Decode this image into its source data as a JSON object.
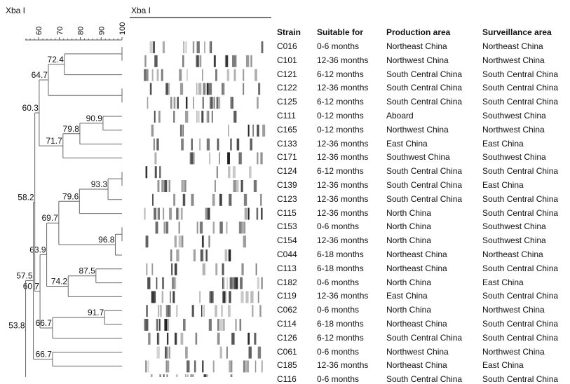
{
  "dendrogram_title": "Xba I",
  "gel_title": "Xba I",
  "axis": {
    "ticks": [
      60,
      70,
      80,
      90,
      100
    ],
    "range": [
      53.8,
      100
    ]
  },
  "columns": [
    "Strain",
    "Suitable for",
    "Production area",
    "Surveillance area"
  ],
  "rows": [
    [
      "C016",
      "0-6 months",
      "Northeast China",
      "Northeast China"
    ],
    [
      "C101",
      "12-36 months",
      "Northwest China",
      "Northwest China"
    ],
    [
      "C121",
      "6-12 months",
      "South Central China",
      "South Central China"
    ],
    [
      "C122",
      "12-36 months",
      "South Central China",
      "South Central China"
    ],
    [
      "C125",
      "6-12 months",
      "South Central China",
      "South Central China"
    ],
    [
      "C111",
      "0-12 months",
      "Aboard",
      "Southwest China"
    ],
    [
      "C165",
      "0-12 months",
      "Northwest China",
      "Northwest China"
    ],
    [
      "C133",
      "12-36 months",
      "East China",
      "East China"
    ],
    [
      "C171",
      "12-36 months",
      "Southwest China",
      "Southwest China"
    ],
    [
      "C124",
      "6-12 months",
      "South Central China",
      "South Central China"
    ],
    [
      "C139",
      "12-36 months",
      "South Central China",
      "East China"
    ],
    [
      "C123",
      "12-36 months",
      "South Central China",
      "South Central China"
    ],
    [
      "C115",
      "12-36 months",
      "North China",
      "South Central China"
    ],
    [
      "C153",
      "0-6 months",
      "North China",
      "Southwest China"
    ],
    [
      "C154",
      "12-36 months",
      "North China",
      "Southwest China"
    ],
    [
      "C044",
      "6-18 months",
      "Northeast China",
      "Northeast China"
    ],
    [
      "C113",
      "6-18 months",
      "Northeast China",
      "South Central China"
    ],
    [
      "C182",
      "0-6 months",
      "North China",
      "East China"
    ],
    [
      "C119",
      "12-36 months",
      "East China",
      "South Central China"
    ],
    [
      "C062",
      "0-6 months",
      "North China",
      "Northwest China"
    ],
    [
      "C114",
      "6-18 months",
      "Northeast China",
      "South Central China"
    ],
    [
      "C126",
      "6-12 months",
      "South Central China",
      "South Central China"
    ],
    [
      "C061",
      "0-6 months",
      "Northwest China",
      "Northwest China"
    ],
    [
      "C185",
      "12-36 months",
      "Northeast China",
      "East China"
    ],
    [
      "C116",
      "0-6 months",
      "South Central China",
      "South Central China"
    ]
  ],
  "tree": {
    "sim": 53.8,
    "label": "53.8",
    "children": [
      {
        "sim": 57.5,
        "label": "57.5",
        "children": [
          {
            "sim": 58.2,
            "label": "58.2",
            "children": [
              {
                "sim": 60.3,
                "label": "60.3",
                "children": [
                  {
                    "sim": 64.7,
                    "label": "64.7",
                    "children": [
                      {
                        "sim": 72.4,
                        "label": "72.4",
                        "children": [
                          {
                            "sim": 100,
                            "children": [
                              "C016",
                              "C101"
                            ]
                          },
                          "C121"
                        ]
                      },
                      {
                        "sim": 100,
                        "children": [
                          "C122",
                          "C125"
                        ]
                      }
                    ]
                  },
                  {
                    "sim": 71.7,
                    "label": "71.7",
                    "children": [
                      {
                        "sim": 79.8,
                        "label": "79.8",
                        "children": [
                          {
                            "sim": 90.9,
                            "label": "90.9",
                            "children": [
                              "C111",
                              "C165"
                            ]
                          },
                          "C133"
                        ]
                      },
                      "C171"
                    ]
                  }
                ]
              },
              {
                "sim": 60.7,
                "label": "60.7",
                "children": [
                  {
                    "sim": 63.9,
                    "label": "63.9",
                    "children": [
                      {
                        "sim": 69.7,
                        "label": "69.7",
                        "children": [
                          {
                            "sim": 79.6,
                            "label": "79.6",
                            "children": [
                              {
                                "sim": 93.3,
                                "label": "93.3",
                                "children": [
                                  {
                                    "sim": 100,
                                    "children": [
                                      "C124",
                                      "C139"
                                    ]
                                  },
                                  "C123"
                                ]
                              },
                              "C115"
                            ]
                          },
                          {
                            "sim": 96.8,
                            "label": "96.8",
                            "children": [
                              {
                                "sim": 100,
                                "children": [
                                  "C153",
                                  "C154"
                                ]
                              },
                              "C044"
                            ]
                          }
                        ]
                      },
                      {
                        "sim": 74.2,
                        "label": "74.2",
                        "children": [
                          {
                            "sim": 87.5,
                            "label": "87.5",
                            "children": [
                              "C113",
                              "C182"
                            ]
                          },
                          "C119"
                        ]
                      }
                    ]
                  },
                  {
                    "sim": 66.7,
                    "label": "66.7",
                    "children": [
                      {
                        "sim": 91.7,
                        "label": "91.7",
                        "children": [
                          "C062",
                          "C114"
                        ]
                      },
                      "C126"
                    ]
                  }
                ]
              }
            ]
          },
          {
            "sim": 66.7,
            "label": "66.7",
            "children": [
              "C061",
              "C185"
            ]
          }
        ]
      },
      "C116"
    ]
  }
}
